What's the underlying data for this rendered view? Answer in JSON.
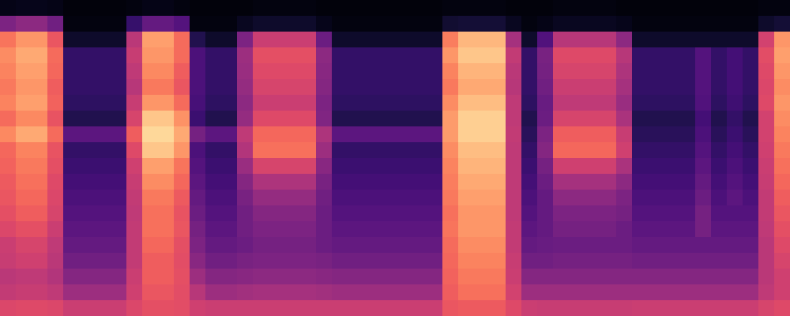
{
  "chart_data": {
    "type": "heatmap",
    "color": "magma",
    "tick_labels": false,
    "zlim": [
      0,
      100
    ],
    "cells": [
      [
        4,
        5,
        5,
        4,
        2,
        2,
        2,
        2,
        3,
        4,
        4,
        3,
        2,
        2,
        2,
        2,
        3,
        3,
        3,
        3,
        2,
        2,
        2,
        2,
        2,
        2,
        2,
        2,
        3,
        3,
        3,
        3,
        2,
        2,
        2,
        3,
        3,
        3,
        3,
        2,
        2,
        2,
        2,
        2,
        2,
        2,
        2,
        2,
        3,
        3
      ],
      [
        36,
        40,
        40,
        33,
        3,
        3,
        3,
        3,
        19,
        30,
        30,
        26,
        3,
        3,
        3,
        6,
        8,
        8,
        8,
        8,
        5,
        3,
        3,
        3,
        3,
        3,
        3,
        3,
        9,
        10,
        10,
        10,
        6,
        3,
        4,
        6,
        6,
        6,
        6,
        5,
        3,
        3,
        3,
        3,
        3,
        3,
        3,
        3,
        8,
        10
      ],
      [
        71,
        78,
        78,
        64,
        8,
        8,
        8,
        8,
        51,
        80,
        80,
        69,
        14,
        8,
        8,
        36,
        55,
        55,
        55,
        55,
        32,
        8,
        8,
        8,
        8,
        8,
        8,
        8,
        73,
        85,
        85,
        85,
        46,
        8,
        25,
        50,
        50,
        50,
        50,
        40,
        8,
        8,
        8,
        8,
        8,
        8,
        8,
        8,
        57,
        78
      ],
      [
        76,
        82,
        82,
        69,
        18,
        18,
        18,
        18,
        54,
        78,
        78,
        69,
        24,
        18,
        18,
        44,
        62,
        62,
        62,
        62,
        40,
        18,
        18,
        18,
        18,
        18,
        18,
        18,
        78,
        88,
        88,
        88,
        53,
        18,
        35,
        60,
        60,
        60,
        60,
        50,
        18,
        18,
        18,
        18,
        26,
        18,
        22,
        18,
        61,
        80
      ],
      [
        74,
        80,
        80,
        68,
        18,
        18,
        18,
        18,
        52,
        75,
        75,
        66,
        24,
        18,
        18,
        43,
        60,
        60,
        60,
        60,
        39,
        18,
        18,
        18,
        18,
        18,
        18,
        18,
        74,
        84,
        84,
        84,
        51,
        18,
        34,
        58,
        58,
        58,
        58,
        48,
        18,
        18,
        18,
        18,
        26,
        18,
        22,
        18,
        60,
        78
      ],
      [
        72,
        78,
        78,
        66,
        18,
        18,
        18,
        18,
        50,
        72,
        72,
        64,
        24,
        18,
        18,
        42,
        58,
        58,
        58,
        58,
        38,
        18,
        18,
        18,
        18,
        18,
        18,
        18,
        72,
        82,
        82,
        82,
        50,
        18,
        33,
        55,
        55,
        55,
        55,
        46,
        18,
        18,
        18,
        18,
        26,
        18,
        22,
        18,
        59,
        76
      ],
      [
        74,
        80,
        80,
        67,
        17,
        17,
        17,
        17,
        54,
        78,
        78,
        69,
        23,
        17,
        17,
        40,
        55,
        55,
        55,
        55,
        36,
        17,
        17,
        17,
        17,
        17,
        17,
        17,
        76,
        86,
        86,
        86,
        52,
        17,
        31,
        52,
        52,
        52,
        52,
        43,
        17,
        17,
        17,
        17,
        25,
        17,
        21,
        17,
        60,
        78
      ],
      [
        69,
        75,
        75,
        63,
        14,
        14,
        14,
        14,
        58,
        88,
        88,
        77,
        20,
        14,
        14,
        42,
        60,
        60,
        60,
        60,
        37,
        14,
        14,
        14,
        14,
        14,
        14,
        14,
        79,
        90,
        90,
        90,
        52,
        14,
        32,
        58,
        58,
        58,
        58,
        47,
        14,
        14,
        14,
        14,
        22,
        14,
        18,
        14,
        57,
        76
      ],
      [
        75,
        82,
        82,
        69,
        28,
        28,
        28,
        28,
        66,
        92,
        92,
        82,
        34,
        28,
        28,
        52,
        68,
        68,
        68,
        68,
        48,
        28,
        28,
        28,
        28,
        28,
        28,
        28,
        79,
        90,
        90,
        90,
        53,
        16,
        36,
        66,
        66,
        66,
        66,
        54,
        16,
        16,
        16,
        16,
        24,
        16,
        20,
        16,
        57,
        74
      ],
      [
        68,
        74,
        74,
        63,
        18,
        18,
        18,
        18,
        60,
        88,
        88,
        78,
        24,
        18,
        18,
        49,
        70,
        70,
        70,
        70,
        44,
        18,
        18,
        18,
        18,
        18,
        18,
        18,
        76,
        86,
        86,
        86,
        52,
        18,
        38,
        68,
        68,
        68,
        68,
        56,
        18,
        18,
        18,
        18,
        26,
        18,
        22,
        18,
        56,
        72
      ],
      [
        67,
        72,
        72,
        62,
        20,
        20,
        20,
        20,
        56,
        80,
        80,
        71,
        26,
        20,
        20,
        43,
        58,
        58,
        58,
        58,
        39,
        20,
        20,
        20,
        20,
        20,
        20,
        20,
        74,
        84,
        84,
        84,
        52,
        20,
        34,
        56,
        56,
        56,
        56,
        47,
        20,
        20,
        20,
        20,
        28,
        20,
        24,
        20,
        55,
        70
      ],
      [
        65,
        70,
        70,
        60,
        22,
        22,
        22,
        22,
        54,
        76,
        76,
        68,
        28,
        22,
        22,
        38,
        48,
        48,
        48,
        48,
        35,
        22,
        22,
        22,
        22,
        22,
        22,
        22,
        73,
        82,
        82,
        82,
        52,
        22,
        32,
        46,
        46,
        46,
        46,
        40,
        22,
        22,
        22,
        22,
        30,
        22,
        26,
        22,
        54,
        68
      ],
      [
        64,
        68,
        68,
        59,
        24,
        24,
        24,
        24,
        53,
        72,
        72,
        65,
        30,
        24,
        24,
        35,
        42,
        42,
        42,
        42,
        33,
        24,
        24,
        24,
        24,
        24,
        24,
        24,
        72,
        80,
        80,
        80,
        52,
        24,
        30,
        40,
        40,
        40,
        40,
        36,
        24,
        24,
        24,
        24,
        32,
        24,
        28,
        24,
        53,
        66
      ],
      [
        62,
        66,
        66,
        58,
        26,
        26,
        26,
        26,
        52,
        70,
        70,
        63,
        32,
        26,
        26,
        33,
        38,
        38,
        38,
        38,
        32,
        26,
        26,
        26,
        26,
        26,
        26,
        26,
        70,
        78,
        78,
        78,
        52,
        26,
        30,
        36,
        36,
        36,
        36,
        34,
        26,
        26,
        26,
        26,
        34,
        26,
        26,
        26,
        53,
        64
      ],
      [
        59,
        62,
        62,
        55,
        28,
        28,
        28,
        28,
        53,
        70,
        70,
        64,
        34,
        28,
        28,
        33,
        36,
        36,
        36,
        36,
        32,
        28,
        28,
        28,
        28,
        28,
        28,
        28,
        71,
        78,
        78,
        78,
        53,
        28,
        30,
        34,
        34,
        34,
        34,
        32,
        28,
        28,
        28,
        28,
        34,
        28,
        28,
        28,
        52,
        62
      ],
      [
        55,
        58,
        58,
        52,
        30,
        30,
        30,
        30,
        53,
        68,
        68,
        62,
        36,
        30,
        30,
        32,
        34,
        34,
        34,
        34,
        32,
        30,
        30,
        30,
        30,
        30,
        30,
        30,
        69,
        76,
        76,
        76,
        53,
        30,
        31,
        32,
        32,
        32,
        32,
        32,
        30,
        30,
        30,
        30,
        30,
        30,
        30,
        30,
        51,
        60
      ],
      [
        54,
        56,
        56,
        51,
        33,
        33,
        33,
        33,
        53,
        66,
        66,
        61,
        39,
        33,
        33,
        35,
        36,
        36,
        36,
        36,
        35,
        33,
        33,
        33,
        33,
        33,
        33,
        33,
        68,
        74,
        74,
        74,
        54,
        33,
        33,
        34,
        34,
        34,
        34,
        34,
        33,
        33,
        33,
        33,
        33,
        33,
        33,
        33,
        51,
        58
      ],
      [
        51,
        52,
        52,
        49,
        38,
        38,
        38,
        38,
        55,
        66,
        66,
        62,
        44,
        38,
        38,
        39,
        40,
        40,
        40,
        40,
        39,
        38,
        38,
        38,
        38,
        38,
        38,
        38,
        67,
        72,
        72,
        72,
        55,
        38,
        38,
        38,
        38,
        38,
        38,
        38,
        38,
        38,
        38,
        38,
        38,
        38,
        38,
        38,
        51,
        56
      ],
      [
        53,
        54,
        54,
        52,
        44,
        44,
        44,
        44,
        56,
        64,
        64,
        61,
        50,
        44,
        44,
        45,
        46,
        46,
        46,
        46,
        45,
        44,
        44,
        44,
        44,
        44,
        44,
        44,
        66,
        70,
        70,
        70,
        57,
        44,
        44,
        44,
        44,
        44,
        44,
        44,
        44,
        44,
        44,
        44,
        44,
        44,
        44,
        44,
        52,
        56
      ],
      [
        59,
        60,
        60,
        59,
        55,
        55,
        55,
        55,
        59,
        62,
        62,
        61,
        56,
        55,
        55,
        55,
        55,
        55,
        55,
        55,
        55,
        55,
        55,
        55,
        55,
        55,
        55,
        55,
        64,
        65,
        65,
        65,
        60,
        55,
        54,
        54,
        54,
        54,
        54,
        54,
        55,
        55,
        55,
        55,
        55,
        55,
        55,
        55,
        58,
        60
      ]
    ]
  }
}
